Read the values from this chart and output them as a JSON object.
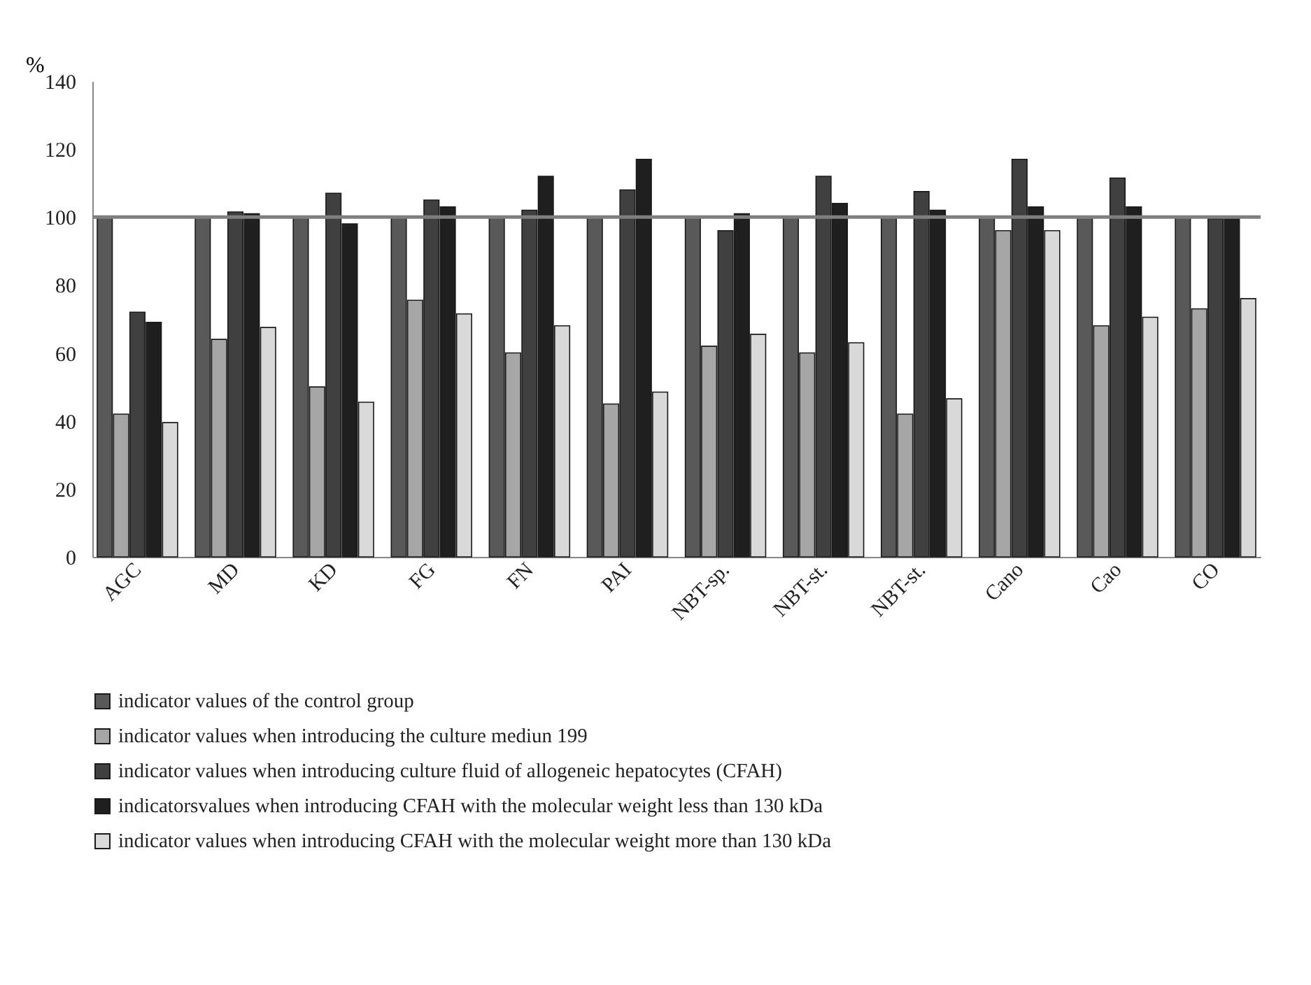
{
  "chart_data": {
    "type": "bar",
    "ylabel": "%",
    "categories": [
      "AGC",
      "MD",
      "KD",
      "FG",
      "FN",
      "PAI",
      "NBT-sp.",
      "NBT-st.",
      "NBT-st.",
      "Cano",
      "Cao",
      "CO"
    ],
    "series": [
      {
        "name": "indicator values of the control group",
        "color": "#595959",
        "values": [
          100,
          100,
          100,
          100,
          100,
          100,
          100,
          100,
          100,
          100,
          100,
          100
        ]
      },
      {
        "name": "indicator values when introducing the culture mediun 199",
        "color": "#a6a6a6",
        "values": [
          42,
          64,
          50,
          75.5,
          60,
          45,
          62,
          60,
          42,
          96,
          68,
          73
        ]
      },
      {
        "name": "indicator values when introducing culture fluid of allogeneic hepatocytes (CFAH)",
        "color": "#404040",
        "values": [
          72,
          101.5,
          107,
          105,
          102,
          108,
          96,
          112,
          107.5,
          117,
          111.5,
          99.5
        ]
      },
      {
        "name": "indicatorsvalues when introducing CFAH with the molecular weight less than 130 kDa",
        "color": "#1f1f1f",
        "values": [
          69,
          101,
          98,
          103,
          112,
          117,
          101,
          104,
          102,
          103,
          103,
          100
        ]
      },
      {
        "name": "indicator values when introducing CFAH with the molecular weight more than 130 kDa",
        "color": "#d9d9d9",
        "values": [
          39.5,
          67.5,
          45.5,
          71.5,
          68,
          48.5,
          65.5,
          63,
          46.5,
          96,
          70.5,
          76
        ]
      }
    ],
    "ylim": [
      0,
      140
    ],
    "yticks": [
      0,
      20,
      40,
      60,
      80,
      100,
      120,
      140
    ],
    "ref_lines": [
      {
        "axis": "y",
        "value": 100,
        "color": "#7f7f7f"
      }
    ],
    "grid": false,
    "legend": "bottom"
  }
}
